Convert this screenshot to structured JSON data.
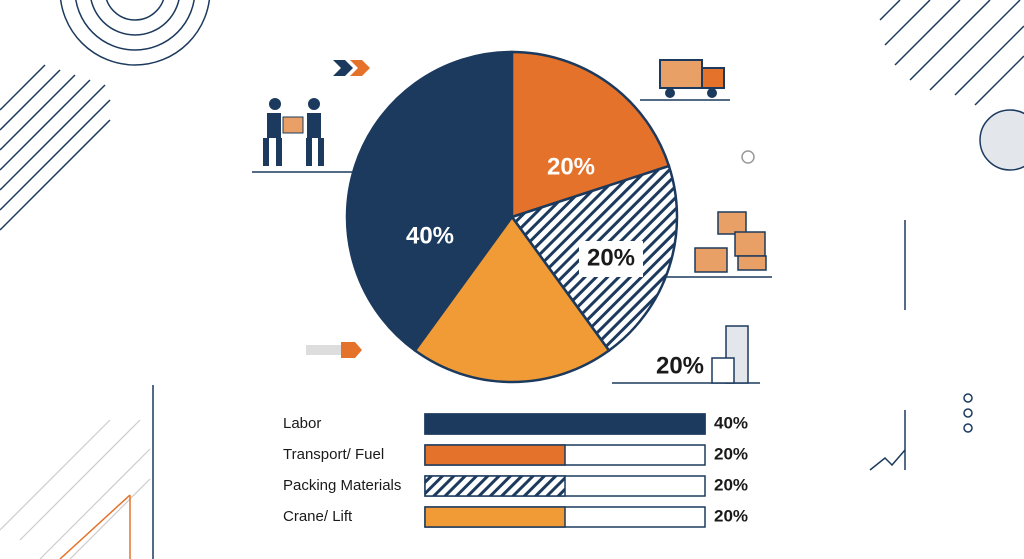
{
  "chart_data": {
    "type": "pie",
    "categories": [
      "Labor",
      "Transport/ Fuel",
      "Packing Materials",
      "Crane/ Lift"
    ],
    "values": [
      40,
      20,
      20,
      20
    ],
    "value_labels": [
      "40%",
      "20%",
      "20%",
      "20%"
    ],
    "colors": [
      "#1c3a5e",
      "#e5722a",
      "#1c3a5e",
      "#f19b36"
    ],
    "hatch": [
      false,
      false,
      true,
      false
    ],
    "xlim": [
      0,
      40
    ]
  }
}
